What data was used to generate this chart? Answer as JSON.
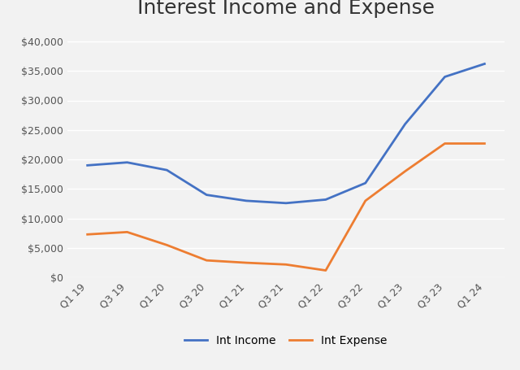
{
  "title": "Interest Income and Expense",
  "categories": [
    "Q1 19",
    "Q3 19",
    "Q1 20",
    "Q3 20",
    "Q1 21",
    "Q3 21",
    "Q1 22",
    "Q3 22",
    "Q1 23",
    "Q3 23",
    "Q1 24"
  ],
  "int_income": [
    19000,
    19500,
    18200,
    14000,
    13000,
    12600,
    13200,
    16000,
    26000,
    34000,
    36200
  ],
  "int_expense": [
    7300,
    7700,
    5500,
    2900,
    2500,
    2200,
    1200,
    13000,
    18000,
    22700,
    22700
  ],
  "income_color": "#4472c4",
  "expense_color": "#ed7d31",
  "income_label": "Int Income",
  "expense_label": "Int Expense",
  "ylim": [
    0,
    42000
  ],
  "yticks": [
    0,
    5000,
    10000,
    15000,
    20000,
    25000,
    30000,
    35000,
    40000
  ],
  "background_color": "#f2f2f2",
  "grid_color": "#ffffff",
  "title_fontsize": 18,
  "legend_fontsize": 10,
  "tick_fontsize": 9,
  "line_width": 2.0,
  "marker_size": 0
}
